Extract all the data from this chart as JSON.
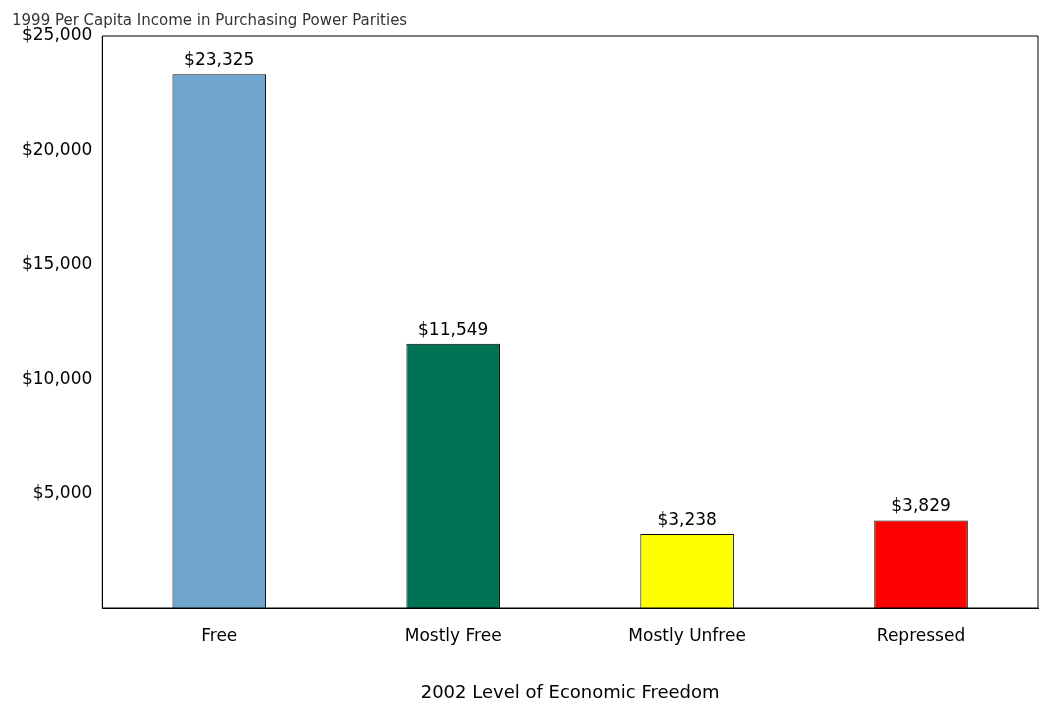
{
  "chart_data": {
    "type": "bar",
    "title": "1999 Per Capita Income in Purchasing Power Parities",
    "xlabel": "2002 Level of Economic Freedom",
    "categories": [
      "Free",
      "Mostly Free",
      "Mostly Unfree",
      "Repressed"
    ],
    "values": [
      23325,
      11549,
      3238,
      3829
    ],
    "value_labels": [
      "$23,325",
      "$11,549",
      "$3,238",
      "$3,829"
    ],
    "colors": [
      "#6fa5cc",
      "#007355",
      "#ffff00",
      "#ff0000"
    ],
    "ylim": [
      0,
      25000
    ],
    "yticks": [
      {
        "value": 5000,
        "label": "$5,000"
      },
      {
        "value": 10000,
        "label": "$10,000"
      },
      {
        "value": 15000,
        "label": "$15,000"
      },
      {
        "value": 20000,
        "label": "$20,000"
      },
      {
        "value": 25000,
        "label": "$25,000"
      }
    ],
    "grid": false,
    "legend": false
  }
}
